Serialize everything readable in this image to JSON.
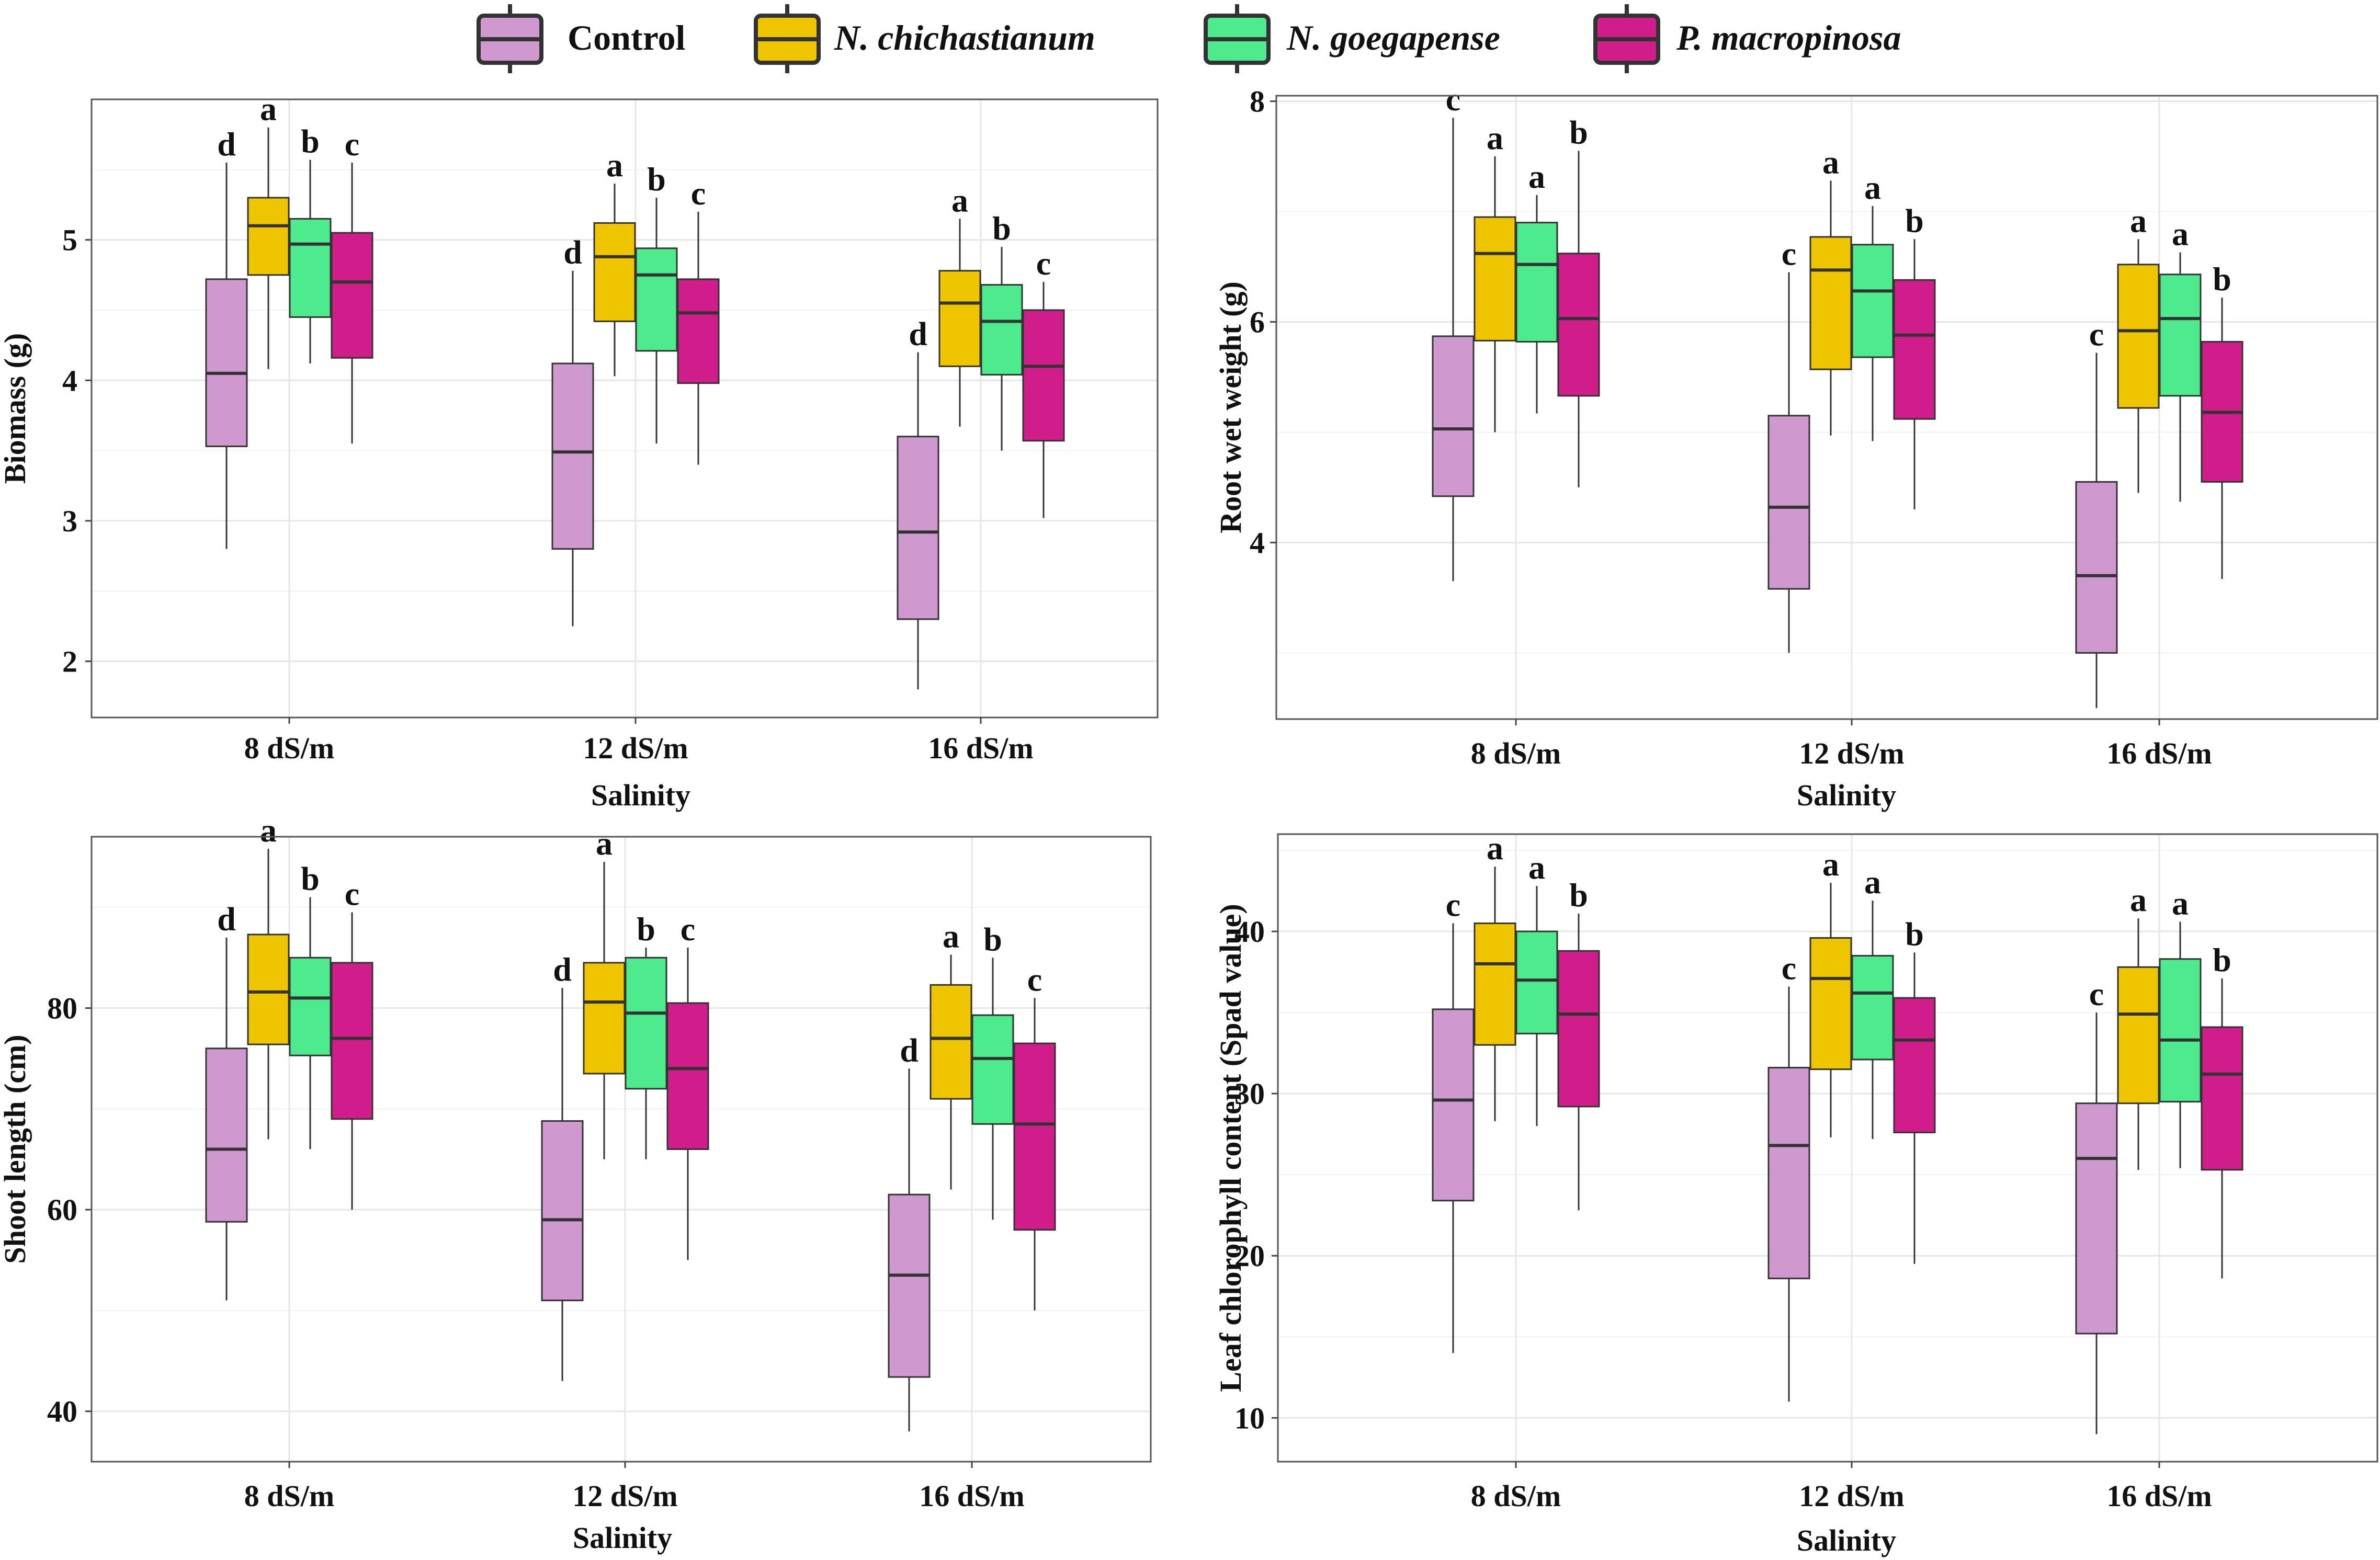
{
  "legend": {
    "items": [
      {
        "label": "Control",
        "color": "#cf98cf",
        "italic": false
      },
      {
        "label": "N. chichastianum",
        "color": "#efc500",
        "italic": true
      },
      {
        "label": "N. goegapense",
        "color": "#4deb8d",
        "italic": true
      },
      {
        "label": "P. macropinosa",
        "color": "#d11d8c",
        "italic": true
      }
    ]
  },
  "chart_data": [
    {
      "type": "boxplot",
      "ylabel": "Biomass (g)",
      "xlabel": "Salinity",
      "categories": [
        "8 dS/m",
        "12 dS/m",
        "16 dS/m"
      ],
      "ylim": [
        1.6,
        6.0
      ],
      "yticks": [
        2,
        3,
        4,
        5
      ],
      "series": [
        {
          "name": "Control",
          "boxes": [
            {
              "low": 2.8,
              "q1": 3.53,
              "median": 4.05,
              "q3": 4.72,
              "high": 5.55,
              "letter": "d"
            },
            {
              "low": 2.25,
              "q1": 2.8,
              "median": 3.49,
              "q3": 4.12,
              "high": 4.78,
              "letter": "d"
            },
            {
              "low": 1.8,
              "q1": 2.3,
              "median": 2.92,
              "q3": 3.6,
              "high": 4.2,
              "letter": "d"
            }
          ]
        },
        {
          "name": "N. chichastianum",
          "boxes": [
            {
              "low": 4.08,
              "q1": 4.75,
              "median": 5.1,
              "q3": 5.3,
              "high": 5.8,
              "letter": "a"
            },
            {
              "low": 4.03,
              "q1": 4.42,
              "median": 4.88,
              "q3": 5.12,
              "high": 5.4,
              "letter": "a"
            },
            {
              "low": 3.67,
              "q1": 4.1,
              "median": 4.55,
              "q3": 4.78,
              "high": 5.15,
              "letter": "a"
            }
          ]
        },
        {
          "name": "N. goegapense",
          "boxes": [
            {
              "low": 4.12,
              "q1": 4.45,
              "median": 4.97,
              "q3": 5.15,
              "high": 5.57,
              "letter": "b"
            },
            {
              "low": 3.55,
              "q1": 4.21,
              "median": 4.75,
              "q3": 4.94,
              "high": 5.3,
              "letter": "b"
            },
            {
              "low": 3.5,
              "q1": 4.04,
              "median": 4.42,
              "q3": 4.68,
              "high": 4.95,
              "letter": "b"
            }
          ]
        },
        {
          "name": "P. macropinosa",
          "boxes": [
            {
              "low": 3.55,
              "q1": 4.16,
              "median": 4.7,
              "q3": 5.05,
              "high": 5.55,
              "letter": "c"
            },
            {
              "low": 3.4,
              "q1": 3.98,
              "median": 4.48,
              "q3": 4.72,
              "high": 5.2,
              "letter": "c"
            },
            {
              "low": 3.02,
              "q1": 3.57,
              "median": 4.1,
              "q3": 4.5,
              "high": 4.7,
              "letter": "c"
            }
          ]
        }
      ]
    },
    {
      "type": "boxplot",
      "ylabel": "Root wet weight (g)",
      "xlabel": "Salinity",
      "categories": [
        "8 dS/m",
        "12 dS/m",
        "16 dS/m"
      ],
      "ylim": [
        2.4,
        8.05
      ],
      "yticks": [
        4,
        6,
        8
      ],
      "series": [
        {
          "name": "Control",
          "boxes": [
            {
              "low": 3.65,
              "q1": 4.42,
              "median": 5.03,
              "q3": 5.87,
              "high": 7.85,
              "letter": "c"
            },
            {
              "low": 3.0,
              "q1": 3.58,
              "median": 4.32,
              "q3": 5.15,
              "high": 6.45,
              "letter": "c"
            },
            {
              "low": 2.5,
              "q1": 3.0,
              "median": 3.7,
              "q3": 4.55,
              "high": 5.72,
              "letter": "c"
            }
          ]
        },
        {
          "name": "N. chichastianum",
          "boxes": [
            {
              "low": 5.0,
              "q1": 5.83,
              "median": 6.62,
              "q3": 6.95,
              "high": 7.5,
              "letter": "a"
            },
            {
              "low": 4.97,
              "q1": 5.57,
              "median": 6.47,
              "q3": 6.77,
              "high": 7.28,
              "letter": "a"
            },
            {
              "low": 4.45,
              "q1": 5.22,
              "median": 5.92,
              "q3": 6.52,
              "high": 6.75,
              "letter": "a"
            }
          ]
        },
        {
          "name": "N. goegapense",
          "boxes": [
            {
              "low": 5.17,
              "q1": 5.82,
              "median": 6.52,
              "q3": 6.9,
              "high": 7.15,
              "letter": "a"
            },
            {
              "low": 4.92,
              "q1": 5.68,
              "median": 6.28,
              "q3": 6.7,
              "high": 7.05,
              "letter": "a"
            },
            {
              "low": 4.37,
              "q1": 5.33,
              "median": 6.03,
              "q3": 6.43,
              "high": 6.63,
              "letter": "a"
            }
          ]
        },
        {
          "name": "P. macropinosa",
          "boxes": [
            {
              "low": 4.5,
              "q1": 5.33,
              "median": 6.03,
              "q3": 6.62,
              "high": 7.55,
              "letter": "b"
            },
            {
              "low": 4.3,
              "q1": 5.12,
              "median": 5.88,
              "q3": 6.38,
              "high": 6.75,
              "letter": "b"
            },
            {
              "low": 3.67,
              "q1": 4.55,
              "median": 5.18,
              "q3": 5.82,
              "high": 6.22,
              "letter": "b"
            }
          ]
        }
      ]
    },
    {
      "type": "boxplot",
      "ylabel": "Shoot length (cm)",
      "xlabel": "Salinity",
      "categories": [
        "8 dS/m",
        "12 dS/m",
        "16 dS/m"
      ],
      "ylim": [
        35,
        97
      ],
      "yticks": [
        40,
        60,
        80
      ],
      "series": [
        {
          "name": "Control",
          "boxes": [
            {
              "low": 51.0,
              "q1": 58.8,
              "median": 66.0,
              "q3": 76.0,
              "high": 87.0,
              "letter": "d"
            },
            {
              "low": 43.0,
              "q1": 51.0,
              "median": 59.0,
              "q3": 68.8,
              "high": 82.0,
              "letter": "d"
            },
            {
              "low": 38.0,
              "q1": 43.4,
              "median": 53.5,
              "q3": 61.5,
              "high": 74.0,
              "letter": "d"
            }
          ]
        },
        {
          "name": "N. chichastianum",
          "boxes": [
            {
              "low": 67.0,
              "q1": 76.4,
              "median": 81.6,
              "q3": 87.3,
              "high": 95.8,
              "letter": "a"
            },
            {
              "low": 65.0,
              "q1": 73.5,
              "median": 80.6,
              "q3": 84.5,
              "high": 94.5,
              "letter": "a"
            },
            {
              "low": 62.0,
              "q1": 71.0,
              "median": 77.0,
              "q3": 82.3,
              "high": 85.3,
              "letter": "a"
            }
          ]
        },
        {
          "name": "N. goegapense",
          "boxes": [
            {
              "low": 66.0,
              "q1": 75.3,
              "median": 81.0,
              "q3": 85.0,
              "high": 91.0,
              "letter": "b"
            },
            {
              "low": 65.0,
              "q1": 72.0,
              "median": 79.5,
              "q3": 85.0,
              "high": 86.0,
              "letter": "b"
            },
            {
              "low": 59.0,
              "q1": 68.5,
              "median": 75.0,
              "q3": 79.3,
              "high": 85.0,
              "letter": "b"
            }
          ]
        },
        {
          "name": "P. macropinosa",
          "boxes": [
            {
              "low": 60.0,
              "q1": 69.0,
              "median": 77.0,
              "q3": 84.5,
              "high": 89.5,
              "letter": "c"
            },
            {
              "low": 55.0,
              "q1": 66.0,
              "median": 74.0,
              "q3": 80.5,
              "high": 86.0,
              "letter": "c"
            },
            {
              "low": 50.0,
              "q1": 58.0,
              "median": 68.5,
              "q3": 76.5,
              "high": 81.0,
              "letter": "c"
            }
          ]
        }
      ]
    },
    {
      "type": "boxplot",
      "ylabel": "Leaf chlorophyll content (Spad value)",
      "xlabel": "Salinity",
      "categories": [
        "8 dS/m",
        "12 dS/m",
        "16 dS/m"
      ],
      "ylim": [
        7.3,
        46
      ],
      "yticks": [
        10,
        20,
        30,
        40
      ],
      "series": [
        {
          "name": "Control",
          "boxes": [
            {
              "low": 14.0,
              "q1": 23.4,
              "median": 29.6,
              "q3": 35.2,
              "high": 40.5,
              "letter": "c"
            },
            {
              "low": 11.0,
              "q1": 18.6,
              "median": 26.8,
              "q3": 31.6,
              "high": 36.6,
              "letter": "c"
            },
            {
              "low": 9.0,
              "q1": 15.2,
              "median": 26.0,
              "q3": 29.4,
              "high": 35.0,
              "letter": "c"
            }
          ]
        },
        {
          "name": "N. chichastianum",
          "boxes": [
            {
              "low": 28.3,
              "q1": 33.0,
              "median": 38.0,
              "q3": 40.5,
              "high": 44.0,
              "letter": "a"
            },
            {
              "low": 27.3,
              "q1": 31.5,
              "median": 37.1,
              "q3": 39.6,
              "high": 43.0,
              "letter": "a"
            },
            {
              "low": 25.3,
              "q1": 29.4,
              "median": 34.9,
              "q3": 37.8,
              "high": 40.8,
              "letter": "a"
            }
          ]
        },
        {
          "name": "N. goegapense",
          "boxes": [
            {
              "low": 28.0,
              "q1": 33.7,
              "median": 37.0,
              "q3": 40.0,
              "high": 42.8,
              "letter": "a"
            },
            {
              "low": 27.2,
              "q1": 32.1,
              "median": 36.2,
              "q3": 38.5,
              "high": 41.9,
              "letter": "a"
            },
            {
              "low": 25.4,
              "q1": 29.5,
              "median": 33.3,
              "q3": 38.3,
              "high": 40.6,
              "letter": "a"
            }
          ]
        },
        {
          "name": "P. macropinosa",
          "boxes": [
            {
              "low": 22.8,
              "q1": 29.2,
              "median": 34.9,
              "q3": 38.8,
              "high": 41.1,
              "letter": "b"
            },
            {
              "low": 19.5,
              "q1": 27.6,
              "median": 33.3,
              "q3": 35.9,
              "high": 38.7,
              "letter": "b"
            },
            {
              "low": 18.6,
              "q1": 25.3,
              "median": 31.2,
              "q3": 34.1,
              "high": 37.1,
              "letter": "b"
            }
          ]
        }
      ]
    }
  ]
}
